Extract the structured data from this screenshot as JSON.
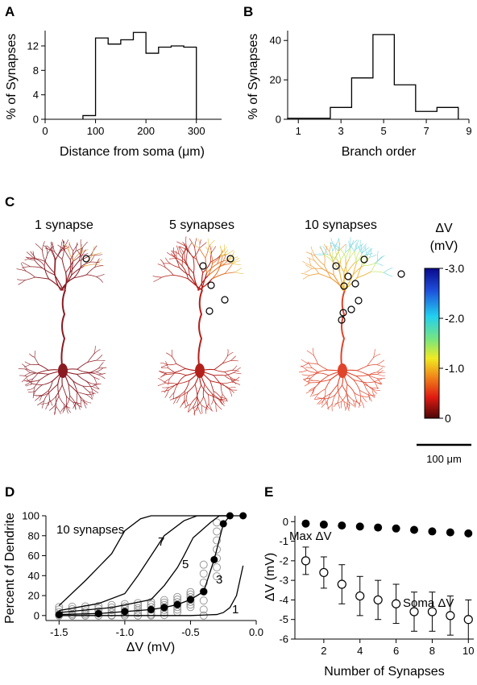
{
  "panels": {
    "A": {
      "label": "A"
    },
    "B": {
      "label": "B"
    },
    "C": {
      "label": "C"
    },
    "D": {
      "label": "D"
    },
    "E": {
      "label": "E"
    }
  },
  "chart_data": [
    {
      "id": "A",
      "type": "histogram",
      "xlabel": "Distance from soma (μm)",
      "ylabel": "% of Synapses",
      "xlim": [
        0,
        350
      ],
      "ylim": [
        0,
        14.5
      ],
      "xticks": [
        0,
        100,
        200,
        300
      ],
      "yticks": [
        0,
        4,
        8,
        12
      ],
      "bins": [
        {
          "x0": 75,
          "x1": 100,
          "value": 0.6
        },
        {
          "x0": 100,
          "x1": 125,
          "value": 13.3
        },
        {
          "x0": 125,
          "x1": 150,
          "value": 12.3
        },
        {
          "x0": 150,
          "x1": 175,
          "value": 13.0
        },
        {
          "x0": 175,
          "x1": 200,
          "value": 14.2
        },
        {
          "x0": 200,
          "x1": 225,
          "value": 10.8
        },
        {
          "x0": 225,
          "x1": 250,
          "value": 11.8
        },
        {
          "x0": 250,
          "x1": 275,
          "value": 12.0
        },
        {
          "x0": 275,
          "x1": 300,
          "value": 11.8
        }
      ]
    },
    {
      "id": "B",
      "type": "histogram",
      "xlabel": "Branch order",
      "ylabel": "% of Synapses",
      "xlim": [
        0.5,
        9
      ],
      "ylim": [
        0,
        45
      ],
      "xticks": [
        1,
        3,
        5,
        7,
        9
      ],
      "yticks": [
        0,
        20,
        40
      ],
      "bins": [
        {
          "x0": 0.5,
          "x1": 2.5,
          "value": 0.5
        },
        {
          "x0": 2.5,
          "x1": 3.5,
          "value": 6
        },
        {
          "x0": 3.5,
          "x1": 4.5,
          "value": 21
        },
        {
          "x0": 4.5,
          "x1": 5.5,
          "value": 43
        },
        {
          "x0": 5.5,
          "x1": 6.5,
          "value": 17.5
        },
        {
          "x0": 6.5,
          "x1": 7.5,
          "value": 4
        },
        {
          "x0": 7.5,
          "x1": 8.5,
          "value": 6
        }
      ]
    },
    {
      "id": "C",
      "type": "other",
      "titles": [
        "1 synapse",
        "5 synapses",
        "10 synapses"
      ],
      "colorbar": {
        "title_line1": "ΔV",
        "title_line2": "(mV)",
        "ticks": [
          "-3.0",
          "-2.0",
          "-1.0",
          "0"
        ],
        "colors": [
          "#0a0a8c",
          "#1e50dc",
          "#22d0f0",
          "#7ce67a",
          "#f0ea22",
          "#f08a1a",
          "#e01a12",
          "#4a0606"
        ]
      },
      "scalebar_label": "100 μm"
    },
    {
      "id": "D",
      "type": "line",
      "xlabel": "ΔV (mV)",
      "ylabel": "Percent of Dendrite",
      "xlim": [
        -1.6,
        0.0
      ],
      "ylim": [
        -5,
        100
      ],
      "xticks": [
        -1.5,
        -1.0,
        -0.5,
        0.0
      ],
      "yticks": [
        0,
        20,
        40,
        60,
        80,
        100
      ],
      "series": [
        {
          "name": "10 synapses",
          "points": [
            [
              -1.5,
              10
            ],
            [
              -1.3,
              35
            ],
            [
              -1.1,
              62
            ],
            [
              -1.0,
              85
            ],
            [
              -0.88,
              97
            ],
            [
              -0.8,
              100
            ],
            [
              -0.2,
              100
            ]
          ]
        },
        {
          "name": "7",
          "points": [
            [
              -1.5,
              5
            ],
            [
              -1.2,
              12
            ],
            [
              -1.0,
              22
            ],
            [
              -0.9,
              40
            ],
            [
              -0.8,
              60
            ],
            [
              -0.7,
              80
            ],
            [
              -0.55,
              95
            ],
            [
              -0.45,
              100
            ],
            [
              -0.2,
              100
            ]
          ]
        },
        {
          "name": "5",
          "points": [
            [
              -1.5,
              3
            ],
            [
              -1.1,
              8
            ],
            [
              -0.8,
              16
            ],
            [
              -0.7,
              30
            ],
            [
              -0.6,
              48
            ],
            [
              -0.55,
              60
            ],
            [
              -0.48,
              78
            ],
            [
              -0.35,
              93
            ],
            [
              -0.28,
              100
            ],
            [
              -0.2,
              100
            ]
          ]
        },
        {
          "name": "3",
          "points": [
            [
              -1.5,
              1
            ],
            [
              -1.2,
              2
            ],
            [
              -1.0,
              4
            ],
            [
              -0.8,
              6
            ],
            [
              -0.7,
              8
            ],
            [
              -0.6,
              11
            ],
            [
              -0.5,
              16
            ],
            [
              -0.4,
              24
            ],
            [
              -0.32,
              56
            ],
            [
              -0.25,
              92
            ],
            [
              -0.2,
              100
            ],
            [
              -0.1,
              100
            ]
          ]
        },
        {
          "name": "1",
          "points": [
            [
              -1.5,
              0
            ],
            [
              -0.5,
              0
            ],
            [
              -0.3,
              1
            ],
            [
              -0.25,
              3
            ],
            [
              -0.2,
              8
            ],
            [
              -0.15,
              20
            ],
            [
              -0.1,
              50
            ]
          ]
        }
      ]
    },
    {
      "id": "E",
      "type": "scatter",
      "xlabel": "Number of Synapses",
      "ylabel": "ΔV (mV)",
      "xlim": [
        0.4,
        10.3
      ],
      "ylim": [
        -6,
        0.3
      ],
      "xticks": [
        2,
        4,
        6,
        8,
        10
      ],
      "yticks": [
        -6,
        -5,
        -4,
        -3,
        -2,
        -1,
        0
      ],
      "series": [
        {
          "name": "Max ΔV",
          "x": [
            1,
            2,
            3,
            4,
            5,
            6,
            7,
            8,
            9,
            10
          ],
          "y": [
            -2.0,
            -2.6,
            -3.2,
            -3.8,
            -4.0,
            -4.2,
            -4.6,
            -4.6,
            -4.8,
            -5.0
          ],
          "err": [
            0.7,
            0.8,
            1.0,
            1.0,
            1.0,
            1.0,
            1.0,
            1.0,
            1.0,
            1.0
          ]
        },
        {
          "name": "Soma ΔV",
          "x": [
            1,
            2,
            3,
            4,
            5,
            6,
            7,
            8,
            9,
            10
          ],
          "y": [
            -0.1,
            -0.15,
            -0.2,
            -0.25,
            -0.3,
            -0.35,
            -0.42,
            -0.5,
            -0.55,
            -0.6
          ]
        }
      ]
    }
  ]
}
